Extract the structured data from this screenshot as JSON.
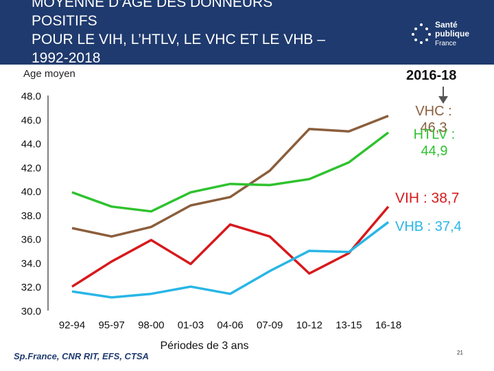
{
  "slide": {
    "title_lines": [
      "MOYENNE D’AGE DES DONNEURS",
      "POSITIFS",
      "POUR LE VIH, L’HTLV, LE VHC ET LE VHB –",
      "1992-2018"
    ],
    "logo": {
      "line1": "Santé",
      "line2": "publique",
      "line3": "France"
    },
    "source": "Sp.France, CNR RIT,  EFS, CTSA",
    "page_number": "21"
  },
  "annotations": {
    "period": "2016-18",
    "vhc": [
      "VHC :",
      "46,3"
    ],
    "htlv": [
      "HTLV :",
      "44,9"
    ],
    "vih": "VIH : 38,7",
    "vhb": "VHB : 37,4"
  },
  "chart_data": {
    "type": "line",
    "title": "",
    "xlabel": "Périodes de 3 ans",
    "ylabel": "Age moyen",
    "categories": [
      "92-94",
      "95-97",
      "98-00",
      "01-03",
      "04-06",
      "07-09",
      "10-12",
      "13-15",
      "16-18"
    ],
    "y_ticks": [
      "30.0",
      "32.0",
      "34.0",
      "36.0",
      "38.0",
      "40.0",
      "42.0",
      "44.0",
      "46.0",
      "48.0"
    ],
    "ylim": [
      30,
      48
    ],
    "grid": false,
    "series": [
      {
        "name": "VHC",
        "color": "#8b5e3c",
        "values": [
          36.9,
          36.2,
          37.0,
          38.8,
          39.5,
          41.7,
          45.2,
          45.0,
          46.3
        ]
      },
      {
        "name": "HTLV",
        "color": "#2fc22f",
        "values": [
          39.9,
          38.7,
          38.3,
          39.9,
          40.6,
          40.5,
          41.0,
          42.4,
          44.9
        ]
      },
      {
        "name": "VIH",
        "color": "#d7191c",
        "values": [
          32.0,
          34.1,
          35.9,
          33.9,
          37.2,
          36.2,
          33.1,
          34.8,
          38.7
        ]
      },
      {
        "name": "VHB",
        "color": "#29b6e6",
        "values": [
          31.6,
          31.1,
          31.4,
          32.0,
          31.4,
          33.3,
          35.0,
          34.9,
          37.4
        ]
      }
    ]
  }
}
